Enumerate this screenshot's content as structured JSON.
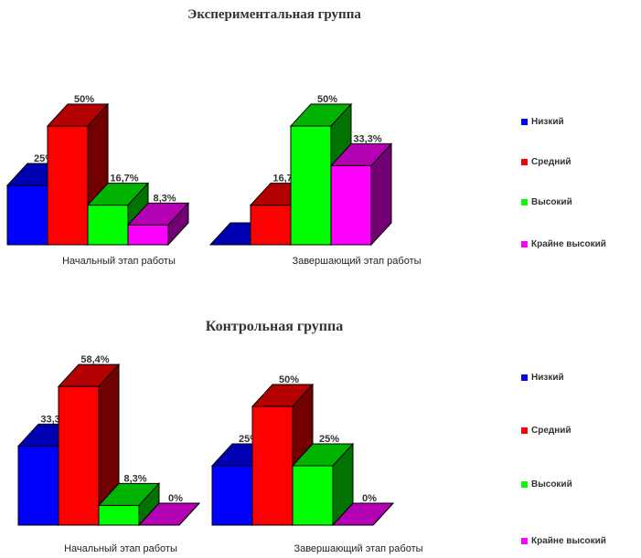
{
  "chart_data": [
    {
      "type": "bar",
      "title": "Экспериментальная группа",
      "categories": [
        "Начальный этап работы",
        "Завершающий этап работы"
      ],
      "series": [
        {
          "name": "Низкий",
          "color": "#0000ff",
          "values": [
            25,
            0
          ],
          "labels": [
            "25%",
            ""
          ]
        },
        {
          "name": "Средний",
          "color": "#ff0000",
          "values": [
            50,
            16.7
          ],
          "labels": [
            "50%",
            "16,7%"
          ]
        },
        {
          "name": "Высокий",
          "color": "#00ff00",
          "values": [
            16.7,
            50
          ],
          "labels": [
            "16,7%",
            "50%"
          ]
        },
        {
          "name": "Крайне высокий",
          "color": "#ff00ff",
          "values": [
            8.3,
            33.3
          ],
          "labels": [
            "8,3%",
            "33,3%"
          ]
        }
      ],
      "ylim": [
        0,
        60
      ],
      "legend": "right",
      "grid": false,
      "style": "3d-clustered"
    },
    {
      "type": "bar",
      "title": "Контрольная группа",
      "categories": [
        "Начальный этап работы",
        "Завершающий этап работы"
      ],
      "series": [
        {
          "name": "Низкий",
          "color": "#0000ff",
          "values": [
            33.3,
            25
          ],
          "labels": [
            "33,3%",
            "25%"
          ]
        },
        {
          "name": "Средний",
          "color": "#ff0000",
          "values": [
            58.4,
            50
          ],
          "labels": [
            "58,4%",
            "50%"
          ]
        },
        {
          "name": "Высокий",
          "color": "#00ff00",
          "values": [
            8.3,
            25
          ],
          "labels": [
            "8,3%",
            "25%"
          ]
        },
        {
          "name": "Крайне высокий",
          "color": "#ff00ff",
          "values": [
            0,
            0
          ],
          "labels": [
            "0%",
            "0%"
          ]
        }
      ],
      "ylim": [
        0,
        60
      ],
      "legend": "right",
      "grid": false,
      "style": "3d-clustered"
    }
  ]
}
